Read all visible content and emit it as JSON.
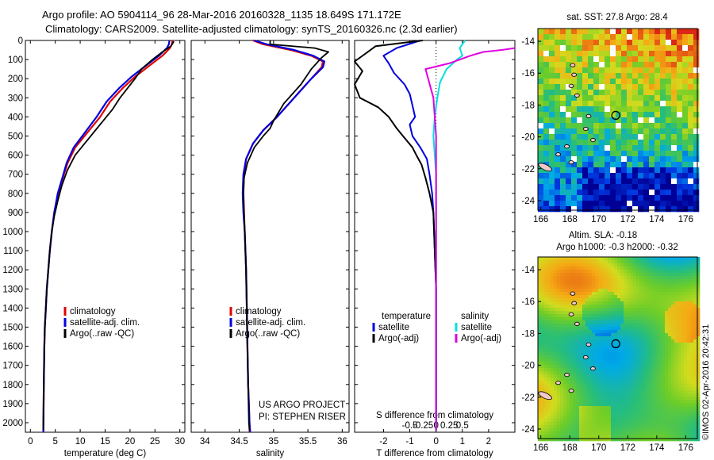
{
  "header": {
    "line1": "Argo profile: AO 5904114_96 28-Mar-2016 20160328_1135 18.649S 171.172E",
    "line2": "Climatology: CARS2009. Satellite-adjusted climatology: synTS_20160326.nc (2.3d earlier)"
  },
  "project": {
    "line1": "US ARGO PROJECT",
    "line2": "PI: STEPHEN RISER"
  },
  "credit": "©IMOS 02-Apr-2016 20:42:31",
  "colors": {
    "climatology": "#e00000",
    "satellite": "#0000e0",
    "argo": "#000000",
    "salinity_satellite": "#00e0e0",
    "salinity_argo": "#e000e0"
  },
  "chart_data": [
    {
      "type": "line",
      "id": "temperature",
      "xlabel": "temperature (deg C)",
      "xlim": [
        -1,
        31
      ],
      "xticks": [
        0,
        5,
        10,
        15,
        20,
        25,
        30
      ],
      "xtick_labels": [
        "0",
        "5",
        "10",
        "15",
        "20",
        "25",
        "30"
      ],
      "ylim": [
        2050,
        0
      ],
      "yticks": [
        0,
        100,
        200,
        300,
        400,
        500,
        600,
        700,
        800,
        900,
        1000,
        1100,
        1200,
        1300,
        1400,
        1500,
        1600,
        1700,
        1800,
        1900,
        2000
      ],
      "ytick_labels": [
        "0",
        "100",
        "200",
        "300",
        "400",
        "500",
        "600",
        "700",
        "800",
        "900",
        "1000",
        "1100",
        "1200",
        "1300",
        "1400",
        "1500",
        "1600",
        "1700",
        "1800",
        "1900",
        "2000"
      ],
      "legend": [
        "climatology",
        "satellite-adj. clim.",
        "Argo(..raw -QC)"
      ],
      "series": [
        {
          "name": "climatology",
          "color": "#e00000",
          "x": [
            28.5,
            28.4,
            28,
            26.5,
            24,
            21,
            18.5,
            16,
            14,
            11.5,
            9,
            7.5,
            6.5,
            5.6,
            4.8,
            4.3,
            3.9,
            3.6,
            3.3,
            3.1,
            2.9,
            2.8,
            2.7,
            2.6
          ],
          "y": [
            0,
            20,
            40,
            80,
            130,
            190,
            250,
            320,
            400,
            480,
            560,
            640,
            720,
            800,
            900,
            1000,
            1100,
            1200,
            1300,
            1400,
            1500,
            1600,
            1800,
            2050
          ]
        },
        {
          "name": "satellite-adj. clim.",
          "color": "#0000e0",
          "x": [
            27.9,
            27.8,
            27.4,
            25.8,
            23.3,
            20.3,
            17.8,
            15.3,
            13.3,
            11,
            8.7,
            7.3,
            6.4,
            5.5,
            4.8,
            4.3,
            3.9,
            3.6,
            3.3,
            3.1,
            2.9,
            2.8,
            2.7,
            2.6
          ],
          "y": [
            0,
            20,
            40,
            80,
            130,
            190,
            250,
            320,
            400,
            480,
            560,
            640,
            720,
            800,
            900,
            1000,
            1100,
            1200,
            1300,
            1400,
            1500,
            1600,
            1800,
            2050
          ]
        },
        {
          "name": "Argo(..raw -QC)",
          "color": "#000000",
          "x": [
            28.8,
            28.2,
            26.5,
            24.5,
            22.3,
            21,
            19.5,
            18,
            16.5,
            14,
            11.5,
            9,
            7.4,
            6.3,
            5.5,
            4.8,
            4.3,
            3.9,
            3.6,
            3.3,
            3.1,
            2.9,
            2.8,
            2.7,
            2.6
          ],
          "y": [
            5,
            30,
            60,
            100,
            150,
            200,
            250,
            300,
            360,
            440,
            520,
            600,
            680,
            760,
            840,
            920,
            1000,
            1100,
            1200,
            1300,
            1400,
            1500,
            1600,
            1800,
            2040
          ]
        }
      ]
    },
    {
      "type": "line",
      "id": "salinity",
      "xlabel": "salinity",
      "xlim": [
        33.8,
        36.1
      ],
      "xticks": [
        34,
        34.5,
        35,
        35.5,
        36
      ],
      "xtick_labels": [
        "34",
        "34.5",
        "35",
        "35.5",
        "36"
      ],
      "ylim": [
        2050,
        0
      ],
      "legend": [
        "climatology",
        "satellite-adj. clim.",
        "Argo(..raw -QC)"
      ],
      "series": [
        {
          "name": "climatology",
          "color": "#e00000",
          "x": [
            34.7,
            34.85,
            35.25,
            35.55,
            35.72,
            35.7,
            35.55,
            35.3,
            35.05,
            34.85,
            34.7,
            34.6,
            34.57,
            34.56,
            34.57,
            34.58,
            34.6,
            34.61,
            34.62,
            34.63,
            34.64,
            34.65,
            34.65
          ],
          "y": [
            0,
            20,
            50,
            80,
            110,
            140,
            200,
            300,
            400,
            470,
            540,
            620,
            700,
            800,
            900,
            1000,
            1200,
            1400,
            1600,
            1800,
            1900,
            2000,
            2050
          ]
        },
        {
          "name": "satellite-adj. clim.",
          "color": "#0000e0",
          "x": [
            34.72,
            34.9,
            35.3,
            35.58,
            35.74,
            35.72,
            35.55,
            35.3,
            35.05,
            34.85,
            34.7,
            34.6,
            34.56,
            34.55,
            34.56,
            34.58,
            34.6,
            34.61,
            34.62,
            34.63,
            34.64,
            34.65,
            34.66
          ],
          "y": [
            0,
            20,
            50,
            80,
            110,
            140,
            200,
            300,
            400,
            470,
            540,
            620,
            700,
            800,
            900,
            1000,
            1200,
            1400,
            1600,
            1800,
            1900,
            2000,
            2050
          ]
        },
        {
          "name": "Argo(..raw -QC)",
          "color": "#000000",
          "x": [
            34.95,
            34.95,
            35.6,
            35.8,
            35.7,
            35.55,
            35.4,
            35.15,
            35.0,
            34.95,
            34.85,
            34.72,
            34.62,
            34.57,
            34.56,
            34.57,
            34.58,
            34.6,
            34.61,
            34.62,
            34.63,
            34.64,
            34.65
          ],
          "y": [
            0,
            20,
            40,
            60,
            90,
            150,
            230,
            330,
            420,
            460,
            500,
            560,
            640,
            720,
            800,
            900,
            1000,
            1200,
            1400,
            1600,
            1800,
            2000,
            2040
          ]
        }
      ]
    },
    {
      "type": "line",
      "id": "difference",
      "xlabel": "T difference from climatology",
      "xlabel_top": "S difference from climatology",
      "xlim": [
        -3.1,
        3.0
      ],
      "xticks_T": [
        -2,
        -1,
        0,
        1,
        2
      ],
      "xtick_labels_T": [
        "-2",
        "-1",
        "0",
        "1",
        "2"
      ],
      "xticks_S": [
        -1,
        -0.5,
        0,
        0.5,
        1
      ],
      "xtick_labels_S": [
        "-0.5",
        "-0.25",
        "0",
        "0.25",
        "0.5"
      ],
      "ylim": [
        2050,
        0
      ],
      "legend_headers": [
        "temperature",
        "salinity"
      ],
      "legend_left": [
        "satellite",
        "Argo(-adj)"
      ],
      "legend_right": [
        "satellite",
        "Argo(-adj)"
      ],
      "series": [
        {
          "name": "temperature satellite",
          "color": "#0000e0",
          "x": [
            -0.6,
            -1.5,
            -2,
            -1.8,
            -1.6,
            -1.2,
            -1,
            -0.9,
            -0.8,
            -1,
            -0.9,
            -0.6,
            -0.35,
            -0.25,
            -0.15,
            -0.1,
            -0.05,
            0,
            0,
            0
          ],
          "y": [
            0,
            40,
            80,
            120,
            170,
            230,
            280,
            340,
            400,
            440,
            500,
            560,
            620,
            700,
            800,
            900,
            1100,
            1300,
            1600,
            2040
          ]
        },
        {
          "name": "temperature Argo",
          "color": "#000000",
          "x": [
            -0.5,
            -2.3,
            -2.6,
            -3.1,
            -2.8,
            -3.1,
            -2.9,
            -2.2,
            -1.8,
            -1.5,
            -1.2,
            -0.9,
            -0.75,
            -0.55,
            -0.4,
            -0.25,
            -0.1,
            -0.05,
            0,
            0,
            0
          ],
          "y": [
            0,
            30,
            60,
            110,
            160,
            230,
            300,
            350,
            400,
            460,
            510,
            560,
            600,
            650,
            720,
            800,
            900,
            1100,
            1300,
            1600,
            2040
          ]
        },
        {
          "name": "salinity satellite",
          "color": "#00e0e0",
          "x": [
            1.1,
            0.9,
            1.0,
            0.8,
            0.4,
            0.15,
            0.05,
            -0.05,
            -0.1,
            -0.05,
            0,
            0,
            0,
            0
          ],
          "y": [
            0,
            40,
            80,
            100,
            150,
            220,
            300,
            400,
            500,
            600,
            700,
            1000,
            1500,
            2040
          ]
        },
        {
          "name": "salinity Argo",
          "color": "#e000e0",
          "x": [
            3.0,
            2.5,
            1.8,
            1.3,
            0.5,
            -0.4,
            -0.3,
            -0.1,
            -0.05,
            0,
            0,
            0
          ],
          "y": [
            40,
            50,
            60,
            80,
            120,
            150,
            200,
            300,
            400,
            500,
            1000,
            2040
          ]
        }
      ]
    },
    {
      "type": "heatmap",
      "id": "sst_map",
      "title": "sat. SST: 27.8 Argo: 28.4",
      "xlim": [
        165.8,
        176.8
      ],
      "ylim": [
        -24.6,
        -13.2
      ],
      "xticks": [
        166,
        168,
        170,
        172,
        174,
        176
      ],
      "xtick_labels": [
        "166",
        "168",
        "170",
        "172",
        "174",
        "176"
      ],
      "yticks": [
        -14,
        -16,
        -18,
        -20,
        -22,
        -24
      ],
      "ytick_labels": [
        "-14",
        "-16",
        "-18",
        "-20",
        "-22",
        "-24"
      ],
      "marker": {
        "lon": 171.172,
        "lat": -18.649
      }
    },
    {
      "type": "heatmap",
      "id": "sla_map",
      "title": "Altim. SLA: -0.18",
      "subtitle": "Argo h1000: -0.3 h2000: -0.32",
      "xlim": [
        165.8,
        176.8
      ],
      "ylim": [
        -24.6,
        -13.2
      ],
      "xticks": [
        166,
        168,
        170,
        172,
        174,
        176
      ],
      "xtick_labels": [
        "166",
        "168",
        "170",
        "172",
        "174",
        "176"
      ],
      "yticks": [
        -14,
        -16,
        -18,
        -20,
        -22,
        -24
      ],
      "ytick_labels": [
        "-14",
        "-16",
        "-18",
        "-20",
        "-22",
        "-24"
      ],
      "marker": {
        "lon": 171.172,
        "lat": -18.649
      }
    }
  ]
}
